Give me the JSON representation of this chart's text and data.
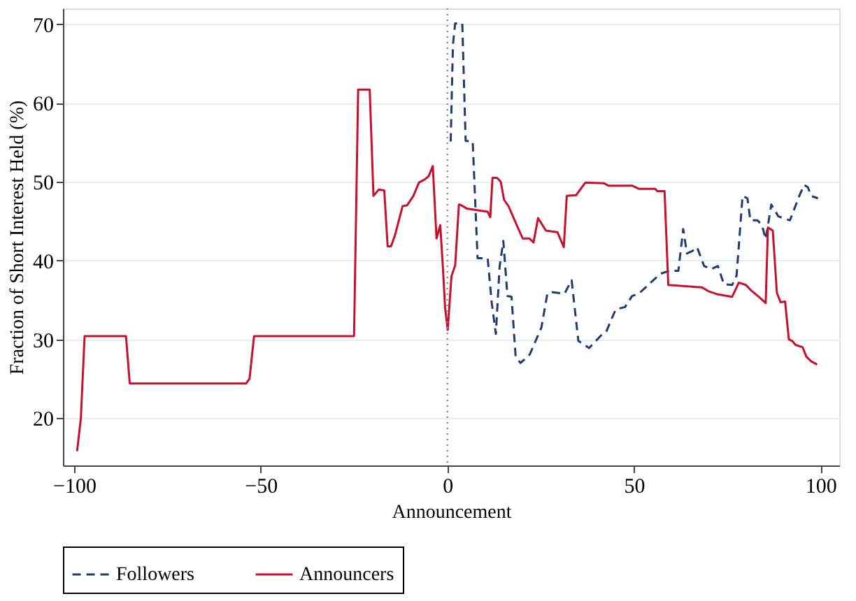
{
  "chart_data": {
    "type": "line",
    "xlabel": "Announcement",
    "ylabel": "Fraction of Short Interest Held (%)",
    "xlim": [
      -103,
      105
    ],
    "xticks": [
      -100,
      -50,
      0,
      50,
      100
    ],
    "ylim": [
      14,
      72
    ],
    "yticks": [
      20,
      30,
      40,
      50,
      60,
      70
    ],
    "grid": "y",
    "legend": "bottom",
    "marker": "none",
    "ref_lines": [
      {
        "axis": "x",
        "value": 0,
        "color": "#888888",
        "line_style": "dotted"
      }
    ],
    "series": [
      {
        "name": "Followers",
        "color": "#1f3b6f",
        "line_style": "dashed",
        "x": [
          0.9,
          1.5,
          2.1,
          4,
          4.9,
          6.8,
          8.1,
          10.8,
          11.9,
          13,
          14,
          15,
          16.1,
          17.2,
          18.3,
          19.6,
          22.1,
          25.2,
          26.8,
          28,
          31.4,
          33.3,
          35.1,
          38,
          41.4,
          42.6,
          45.1,
          47.6,
          49.5,
          51.3,
          54.5,
          57,
          59.4,
          61.9,
          63.2,
          64.2,
          65.6,
          66.9,
          68.8,
          70.7,
          72.5,
          74.1,
          76.3,
          77.5,
          79.1,
          80.4,
          81.2,
          83.1,
          84.3,
          85.3,
          86.8,
          88.7,
          91.8,
          94.3,
          95.6,
          96.6,
          97.5,
          99.3
        ],
        "values": [
          55.1,
          67.4,
          70.1,
          70.1,
          55.2,
          55.1,
          40.3,
          40.3,
          34.6,
          30.7,
          39.2,
          42.5,
          35.5,
          35.4,
          27.8,
          27,
          28.1,
          31.5,
          35.8,
          36,
          35.8,
          37.5,
          29.8,
          28.9,
          30.6,
          31,
          33.8,
          34.1,
          35.5,
          35.8,
          37.2,
          38.3,
          38.7,
          38.7,
          44,
          40.9,
          41.2,
          41.7,
          39.3,
          38.9,
          39.3,
          37,
          36.9,
          38.1,
          48.2,
          47.9,
          45.1,
          45.1,
          44.5,
          42.7,
          47.1,
          45.6,
          45.1,
          48.2,
          49.6,
          49.3,
          48.2,
          47.9
        ]
      },
      {
        "name": "Announcers",
        "color": "#c8102e",
        "line_style": "solid",
        "x": [
          -99.2,
          -98.2,
          -97.2,
          -86.1,
          -85.1,
          -53.9,
          -53,
          -51.8,
          -25,
          -23.9,
          -20.8,
          -19.8,
          -18.4,
          -16.9,
          -16,
          -15.1,
          -14.1,
          -12,
          -10.8,
          -9.1,
          -7.6,
          -6,
          -5,
          -3.9,
          -2.9,
          -1.9,
          -1.2,
          -0.6,
          0.1,
          1.1,
          2.1,
          3.1,
          3.4,
          5.2,
          10.8,
          11.5,
          12.1,
          13.3,
          14.3,
          15.2,
          16.4,
          18.3,
          20.2,
          22,
          23.1,
          24.3,
          26.4,
          29.5,
          31.2,
          32,
          34.5,
          37,
          42,
          43.2,
          49.5,
          51.3,
          55.7,
          56.3,
          58.2,
          59.2,
          68.2,
          70,
          72.5,
          76.3,
          77,
          78.1,
          80,
          81.2,
          83.7,
          85.3,
          85.9,
          87.2,
          88.3,
          89.3,
          90.5,
          91.5,
          92.4,
          93.3,
          95.2,
          96.2,
          97.5,
          99.1
        ],
        "values": [
          15.8,
          20,
          30.4,
          30.4,
          24.4,
          24.4,
          25,
          30.4,
          30.4,
          61.7,
          61.7,
          48.2,
          49,
          48.9,
          41.8,
          41.8,
          43.1,
          46.9,
          47,
          48.2,
          49.9,
          50.3,
          50.7,
          52,
          42.8,
          44.5,
          39.2,
          34,
          31.2,
          38,
          39.4,
          47.1,
          47.1,
          46.6,
          46.2,
          45.5,
          50.5,
          50.5,
          50,
          47.7,
          46.9,
          44.8,
          42.8,
          42.8,
          42.3,
          45.4,
          43.8,
          43.6,
          41.7,
          48.2,
          48.3,
          49.9,
          49.8,
          49.5,
          49.5,
          49.1,
          49.1,
          48.8,
          48.8,
          36.9,
          36.6,
          36.1,
          35.7,
          35.4,
          36.1,
          37.2,
          36.9,
          36.3,
          35.3,
          34.6,
          44.2,
          43.8,
          35.9,
          34.7,
          34.8,
          30,
          29.8,
          29.3,
          29,
          27.8,
          27.2,
          26.8
        ]
      }
    ]
  }
}
